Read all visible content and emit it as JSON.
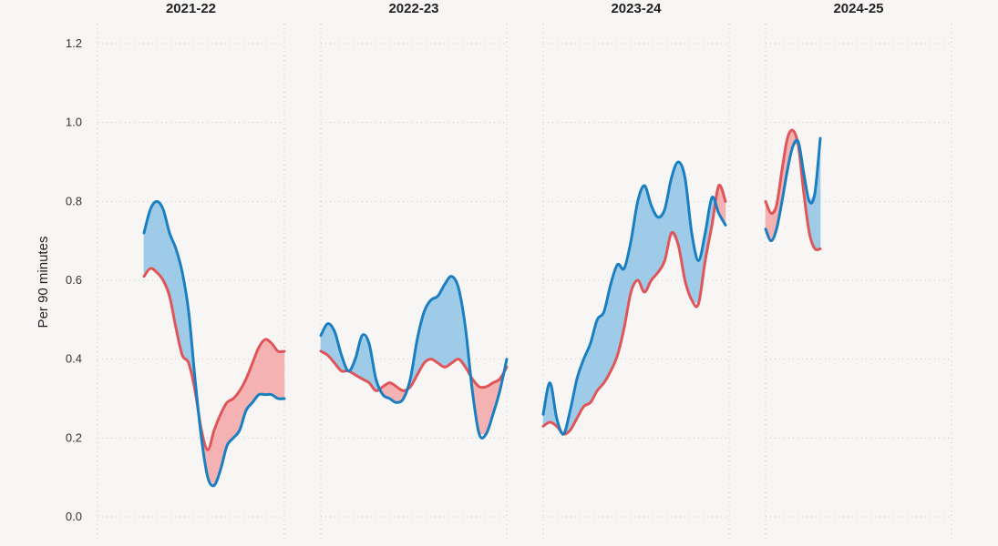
{
  "chart_data": {
    "type": "line",
    "ylabel": "Per 90 minutes",
    "ylim": [
      0,
      1.2
    ],
    "yticks": [
      "0.0",
      "0.2",
      "0.4",
      "0.6",
      "0.8",
      "1.0",
      "1.2"
    ],
    "grid": true,
    "colors": {
      "blue": "#1a7fc1",
      "red": "#e05558",
      "blue_fill": "#9ecbe8",
      "red_fill": "#f4b2b2"
    },
    "fill_between": true,
    "panels": [
      {
        "title": "2021-22",
        "series": [
          {
            "values": [
              0.72,
              0.78,
              0.8,
              0.78,
              0.72,
              0.68,
              0.62,
              0.52,
              0.35,
              0.2,
              0.1,
              0.08,
              0.12,
              0.18,
              0.2,
              0.22,
              0.27,
              0.29,
              0.31,
              0.31,
              0.31,
              0.3,
              0.3
            ]
          },
          {
            "values": [
              0.61,
              0.63,
              0.62,
              0.6,
              0.56,
              0.48,
              0.41,
              0.39,
              0.32,
              0.22,
              0.17,
              0.22,
              0.26,
              0.29,
              0.3,
              0.32,
              0.35,
              0.39,
              0.43,
              0.45,
              0.44,
              0.42,
              0.42
            ]
          }
        ]
      },
      {
        "title": "2022-23",
        "series": [
          {
            "values": [
              0.46,
              0.49,
              0.47,
              0.41,
              0.37,
              0.4,
              0.46,
              0.44,
              0.35,
              0.31,
              0.3,
              0.29,
              0.3,
              0.35,
              0.45,
              0.52,
              0.55,
              0.56,
              0.59,
              0.61,
              0.58,
              0.48,
              0.32,
              0.21,
              0.21,
              0.26,
              0.32,
              0.4
            ]
          },
          {
            "values": [
              0.42,
              0.41,
              0.39,
              0.37,
              0.37,
              0.36,
              0.35,
              0.34,
              0.32,
              0.33,
              0.34,
              0.33,
              0.32,
              0.33,
              0.36,
              0.39,
              0.4,
              0.39,
              0.38,
              0.39,
              0.4,
              0.38,
              0.35,
              0.33,
              0.33,
              0.34,
              0.35,
              0.38,
              0.42,
              0.43
            ]
          }
        ]
      },
      {
        "title": "2023-24",
        "series": [
          {
            "values": [
              0.26,
              0.34,
              0.25,
              0.21,
              0.27,
              0.35,
              0.4,
              0.44,
              0.5,
              0.52,
              0.59,
              0.64,
              0.63,
              0.7,
              0.8,
              0.84,
              0.79,
              0.76,
              0.78,
              0.86,
              0.9,
              0.86,
              0.72,
              0.65,
              0.72,
              0.81,
              0.77,
              0.74
            ]
          },
          {
            "values": [
              0.23,
              0.24,
              0.23,
              0.21,
              0.22,
              0.25,
              0.28,
              0.29,
              0.32,
              0.34,
              0.37,
              0.41,
              0.48,
              0.57,
              0.6,
              0.57,
              0.6,
              0.62,
              0.65,
              0.72,
              0.69,
              0.6,
              0.55,
              0.54,
              0.65,
              0.74,
              0.84,
              0.8
            ]
          }
        ]
      },
      {
        "title": "2024-25",
        "series": [
          {
            "values": [
              0.73,
              0.7,
              0.73,
              0.8,
              0.88,
              0.94,
              0.95,
              0.87,
              0.8,
              0.82,
              0.96
            ]
          },
          {
            "values": [
              0.8,
              0.77,
              0.79,
              0.88,
              0.96,
              0.98,
              0.94,
              0.82,
              0.72,
              0.68,
              0.68
            ]
          }
        ]
      }
    ]
  }
}
